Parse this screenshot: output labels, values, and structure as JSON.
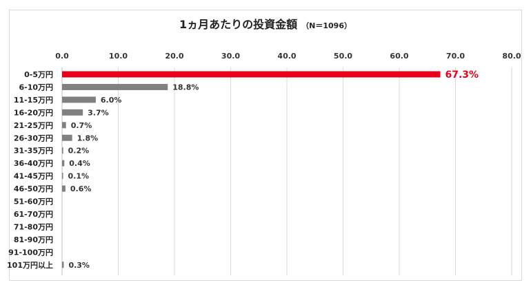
{
  "chart_data": {
    "type": "bar",
    "orientation": "horizontal",
    "title": "1ヵ月あたりの投資金額",
    "subtitle": "（N＝1096）",
    "xlim": [
      0,
      80
    ],
    "xticks": [
      "0.0",
      "10.0",
      "20.0",
      "30.0",
      "40.0",
      "50.0",
      "60.0",
      "70.0",
      "80.0"
    ],
    "xtick_values": [
      0,
      10,
      20,
      30,
      40,
      50,
      60,
      70,
      80
    ],
    "axis_position": "top",
    "grid": "vertical",
    "categories": [
      "0-5万円",
      "6-10万円",
      "11-15万円",
      "16-20万円",
      "21-25万円",
      "26-30万円",
      "31-35万円",
      "36-40万円",
      "41-45万円",
      "46-50万円",
      "51-60万円",
      "61-70万円",
      "71-80万円",
      "81-90万円",
      "91-100万円",
      "101万円以上"
    ],
    "values": [
      67.3,
      18.8,
      6.0,
      3.7,
      0.7,
      1.8,
      0.2,
      0.4,
      0.1,
      0.6,
      null,
      null,
      null,
      null,
      null,
      0.3
    ],
    "data_labels": [
      "67.3%",
      "18.8%",
      "6.0%",
      "3.7%",
      "0.7%",
      "1.8%",
      "0.2%",
      "0.4%",
      "0.1%",
      "0.6%",
      "",
      "",
      "",
      "",
      "",
      "0.3%"
    ],
    "highlight_index": 0,
    "colors": {
      "bar": "#808080",
      "highlight": "#e6001a",
      "grid": "#d9d9d9"
    }
  }
}
